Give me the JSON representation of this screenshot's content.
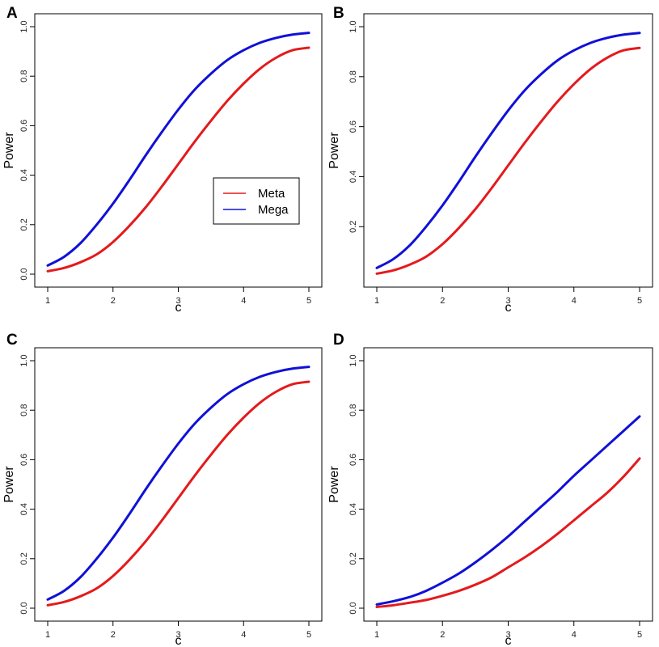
{
  "colors": {
    "meta": "#e41a1c",
    "mega": "#1010d8"
  },
  "chart_data": [
    {
      "type": "line",
      "panel_label": "A",
      "xlabel": "c",
      "ylabel": "Power",
      "xlim": [
        1,
        5
      ],
      "ylim": [
        0,
        1
      ],
      "xticks": [
        "1",
        "2",
        "3",
        "4",
        "5"
      ],
      "yticks": [
        "0.0",
        "0.2",
        "0.4",
        "0.6",
        "0.8",
        "1.0"
      ],
      "x": [
        1.0,
        1.25,
        1.5,
        1.75,
        2.0,
        2.25,
        2.5,
        2.75,
        3.0,
        3.25,
        3.5,
        3.75,
        4.0,
        4.25,
        4.5,
        4.75,
        5.0
      ],
      "series": [
        {
          "name": "Meta",
          "color": "#e41a1c",
          "values": [
            0.012,
            0.025,
            0.048,
            0.08,
            0.13,
            0.195,
            0.27,
            0.355,
            0.445,
            0.535,
            0.62,
            0.7,
            0.77,
            0.83,
            0.875,
            0.905,
            0.915
          ]
        },
        {
          "name": "Mega",
          "color": "#1010d8",
          "values": [
            0.035,
            0.07,
            0.125,
            0.2,
            0.285,
            0.38,
            0.48,
            0.575,
            0.665,
            0.745,
            0.81,
            0.865,
            0.905,
            0.935,
            0.955,
            0.968,
            0.975
          ]
        }
      ],
      "legend": {
        "position": "center-right",
        "entries": [
          "Meta",
          "Mega"
        ]
      }
    },
    {
      "type": "line",
      "panel_label": "B",
      "xlabel": "c",
      "ylabel": "Power",
      "xlim": [
        1,
        5
      ],
      "ylim": [
        0.01,
        1
      ],
      "xticks": [
        "1",
        "2",
        "3",
        "4",
        "5"
      ],
      "yticks": [
        "0.2",
        "0.4",
        "0.6",
        "0.8",
        "1.0"
      ],
      "x": [
        1.0,
        1.25,
        1.5,
        1.75,
        2.0,
        2.25,
        2.5,
        2.75,
        3.0,
        3.25,
        3.5,
        3.75,
        4.0,
        4.25,
        4.5,
        4.75,
        5.0
      ],
      "series": [
        {
          "name": "Meta",
          "color": "#e41a1c",
          "values": [
            0.012,
            0.025,
            0.048,
            0.08,
            0.13,
            0.195,
            0.27,
            0.355,
            0.445,
            0.535,
            0.62,
            0.7,
            0.77,
            0.83,
            0.875,
            0.905,
            0.915
          ]
        },
        {
          "name": "Mega",
          "color": "#1010d8",
          "values": [
            0.035,
            0.07,
            0.125,
            0.2,
            0.285,
            0.38,
            0.48,
            0.575,
            0.665,
            0.745,
            0.81,
            0.865,
            0.905,
            0.935,
            0.955,
            0.968,
            0.975
          ]
        }
      ]
    },
    {
      "type": "line",
      "panel_label": "C",
      "xlabel": "c",
      "ylabel": "Power",
      "xlim": [
        1,
        5
      ],
      "ylim": [
        0,
        1
      ],
      "xticks": [
        "1",
        "2",
        "3",
        "4",
        "5"
      ],
      "yticks": [
        "0.0",
        "0.2",
        "0.4",
        "0.6",
        "0.8",
        "1.0"
      ],
      "x": [
        1.0,
        1.25,
        1.5,
        1.75,
        2.0,
        2.25,
        2.5,
        2.75,
        3.0,
        3.25,
        3.5,
        3.75,
        4.0,
        4.25,
        4.5,
        4.75,
        5.0
      ],
      "series": [
        {
          "name": "Meta",
          "color": "#e41a1c",
          "values": [
            0.012,
            0.025,
            0.048,
            0.08,
            0.13,
            0.195,
            0.27,
            0.355,
            0.445,
            0.535,
            0.62,
            0.7,
            0.77,
            0.83,
            0.875,
            0.905,
            0.915
          ]
        },
        {
          "name": "Mega",
          "color": "#1010d8",
          "values": [
            0.035,
            0.07,
            0.125,
            0.2,
            0.285,
            0.38,
            0.48,
            0.575,
            0.665,
            0.745,
            0.81,
            0.865,
            0.905,
            0.935,
            0.955,
            0.968,
            0.975
          ]
        }
      ]
    },
    {
      "type": "line",
      "panel_label": "D",
      "xlabel": "c",
      "ylabel": "Power",
      "xlim": [
        1,
        5
      ],
      "ylim": [
        0,
        1
      ],
      "xticks": [
        "1",
        "2",
        "3",
        "4",
        "5"
      ],
      "yticks": [
        "0.0",
        "0.2",
        "0.4",
        "0.6",
        "0.8",
        "1.0"
      ],
      "x": [
        1.0,
        1.25,
        1.5,
        1.75,
        2.0,
        2.25,
        2.5,
        2.75,
        3.0,
        3.25,
        3.5,
        3.75,
        4.0,
        4.25,
        4.5,
        4.75,
        5.0
      ],
      "series": [
        {
          "name": "Meta",
          "color": "#e41a1c",
          "values": [
            0.005,
            0.012,
            0.022,
            0.033,
            0.05,
            0.07,
            0.095,
            0.125,
            0.165,
            0.205,
            0.25,
            0.3,
            0.355,
            0.41,
            0.465,
            0.53,
            0.605
          ]
        },
        {
          "name": "Mega",
          "color": "#1010d8",
          "values": [
            0.015,
            0.028,
            0.045,
            0.07,
            0.103,
            0.14,
            0.185,
            0.235,
            0.29,
            0.35,
            0.41,
            0.47,
            0.535,
            0.595,
            0.655,
            0.715,
            0.775
          ]
        }
      ]
    }
  ]
}
